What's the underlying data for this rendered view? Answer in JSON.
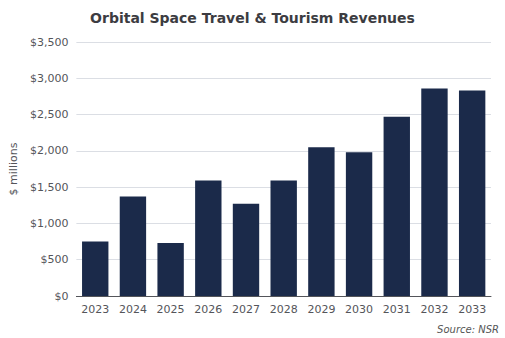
{
  "chart_data": {
    "type": "bar",
    "title": "Orbital Space Travel & Tourism Revenues",
    "ylabel": "$ millions",
    "annotations": [
      "Source: NSR"
    ],
    "categories": [
      "2023",
      "2024",
      "2025",
      "2026",
      "2027",
      "2028",
      "2029",
      "2030",
      "2031",
      "2032",
      "2033"
    ],
    "values": [
      750,
      1370,
      730,
      1590,
      1270,
      1590,
      2050,
      1980,
      2470,
      2860,
      2830
    ],
    "color": "#1B2A4A",
    "ylim": [
      0,
      3500
    ],
    "yticks": [
      {
        "value": 0,
        "label": "$0"
      },
      {
        "value": 500,
        "label": "$500"
      },
      {
        "value": 1000,
        "label": "$1,000"
      },
      {
        "value": 1500,
        "label": "$1,500"
      },
      {
        "value": 2000,
        "label": "$2,000"
      },
      {
        "value": 2500,
        "label": "$2,500"
      },
      {
        "value": 3000,
        "label": "$3,000"
      },
      {
        "value": 3500,
        "label": "$3,500"
      }
    ],
    "grid": true
  }
}
